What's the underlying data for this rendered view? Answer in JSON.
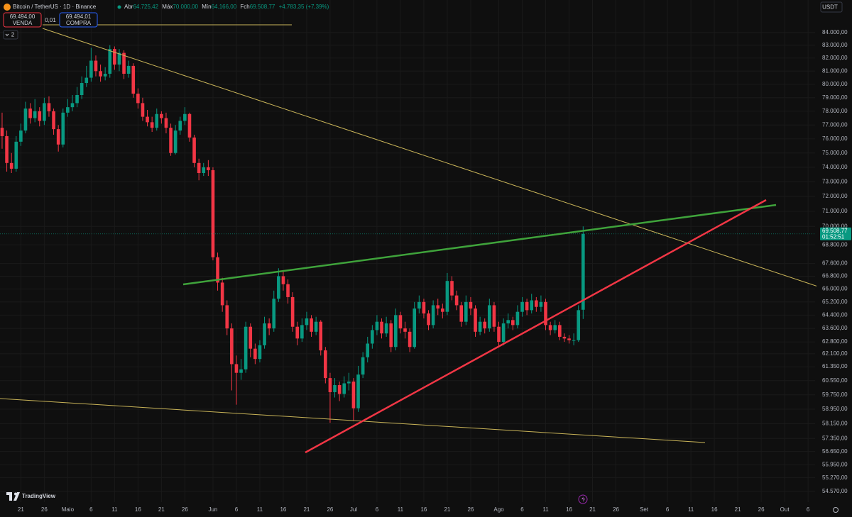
{
  "header": {
    "abr_label": "Abr",
    "abr": "64.725,42",
    "max_label": "Máx",
    "max": "70.000,00",
    "min_label": "Mín",
    "min": "64.166,00",
    "close_label": "Fch",
    "close": "69.508,77",
    "change": "+4.783,35 (+7,39%)",
    "sell": "69.494,00",
    "sell_label": "VENDA",
    "qty": "0,01",
    "buy": "69.494,01",
    "buy_label": "COMPRA",
    "indicators": "2",
    "currency": "USDT"
  },
  "branding": "TradingView",
  "chart_data": {
    "type": "candlestick",
    "title": "Bitcoin / TetherUS · 1D · Binance",
    "up_color": "#089981",
    "down_color": "#f23645",
    "log_scale": true,
    "grid": true,
    "last_price_label": "69.508,77",
    "countdown": "01:52:51",
    "xlim": [
      -0.45,
      173.5
    ],
    "xticks": [
      {
        "value": 4,
        "label": "21"
      },
      {
        "value": 9,
        "label": "26"
      },
      {
        "value": 14,
        "label": "Maio"
      },
      {
        "value": 19,
        "label": "6"
      },
      {
        "value": 24,
        "label": "11"
      },
      {
        "value": 29,
        "label": "16"
      },
      {
        "value": 34,
        "label": "21"
      },
      {
        "value": 39,
        "label": "26"
      },
      {
        "value": 45,
        "label": "Jun"
      },
      {
        "value": 50,
        "label": "6"
      },
      {
        "value": 55,
        "label": "11"
      },
      {
        "value": 60,
        "label": "16"
      },
      {
        "value": 65,
        "label": "21"
      },
      {
        "value": 70,
        "label": "26"
      },
      {
        "value": 75,
        "label": "Jul"
      },
      {
        "value": 80,
        "label": "6"
      },
      {
        "value": 85,
        "label": "11"
      },
      {
        "value": 90,
        "label": "16"
      },
      {
        "value": 95,
        "label": "21"
      },
      {
        "value": 100,
        "label": "26"
      },
      {
        "value": 106,
        "label": "Ago"
      },
      {
        "value": 111,
        "label": "6"
      },
      {
        "value": 116,
        "label": "11"
      },
      {
        "value": 121,
        "label": "16"
      },
      {
        "value": 126,
        "label": "21"
      },
      {
        "value": 131,
        "label": "26"
      },
      {
        "value": 137,
        "label": "Set"
      },
      {
        "value": 142,
        "label": "6"
      },
      {
        "value": 147,
        "label": "11"
      },
      {
        "value": 152,
        "label": "16"
      },
      {
        "value": 157,
        "label": "21"
      },
      {
        "value": 162,
        "label": "26"
      },
      {
        "value": 167,
        "label": "Out"
      },
      {
        "value": 172,
        "label": "6"
      }
    ],
    "ylim": [
      54020,
      86600
    ],
    "yticks": [
      {
        "value": 84000,
        "label": "84.000,00"
      },
      {
        "value": 83000,
        "label": "83.000,00"
      },
      {
        "value": 82000,
        "label": "82.000,00"
      },
      {
        "value": 81000,
        "label": "81.000,00"
      },
      {
        "value": 80000,
        "label": "80.000,00"
      },
      {
        "value": 79000,
        "label": "79.000,00"
      },
      {
        "value": 78000,
        "label": "78.000,00"
      },
      {
        "value": 77000,
        "label": "77.000,00"
      },
      {
        "value": 76000,
        "label": "76.000,00"
      },
      {
        "value": 75000,
        "label": "75.000,00"
      },
      {
        "value": 74000,
        "label": "74.000,00"
      },
      {
        "value": 73000,
        "label": "73.000,00"
      },
      {
        "value": 72000,
        "label": "72.000,00"
      },
      {
        "value": 71000,
        "label": "71.000,00"
      },
      {
        "value": 70000,
        "label": "70.000,00"
      },
      {
        "value": 68800,
        "label": "68.800,00"
      },
      {
        "value": 67600,
        "label": "67.600,00"
      },
      {
        "value": 66800,
        "label": "66.800,00"
      },
      {
        "value": 66000,
        "label": "66.000,00"
      },
      {
        "value": 65200,
        "label": "65.200,00"
      },
      {
        "value": 64400,
        "label": "64.400,00"
      },
      {
        "value": 63600,
        "label": "63.600,00"
      },
      {
        "value": 62800,
        "label": "62.800,00"
      },
      {
        "value": 62100,
        "label": "62.100,00"
      },
      {
        "value": 61350,
        "label": "61.350,00"
      },
      {
        "value": 60550,
        "label": "60.550,00"
      },
      {
        "value": 59750,
        "label": "59.750,00"
      },
      {
        "value": 58950,
        "label": "58.950,00"
      },
      {
        "value": 58150,
        "label": "58.150,00"
      },
      {
        "value": 57350,
        "label": "57.350,00"
      },
      {
        "value": 56650,
        "label": "56.650,00"
      },
      {
        "value": 55950,
        "label": "55.950,00"
      },
      {
        "value": 55270,
        "label": "55.270,00"
      },
      {
        "value": 54570,
        "label": "54.570,00"
      }
    ],
    "open": [
      76800,
      76200,
      74300,
      73900,
      75800,
      76600,
      78200,
      77500,
      78000,
      77300,
      78600,
      78000,
      76700,
      75600,
      77900,
      78300,
      78600,
      79200,
      80100,
      80500,
      81800,
      81000,
      80600,
      80800,
      82700,
      81500,
      82400,
      80800,
      81400,
      79300,
      78600,
      77600,
      77200,
      76800,
      77800,
      77500,
      76800,
      75000,
      76600,
      77300,
      77800,
      76100,
      74300,
      73600,
      74000,
      73800,
      68000,
      66400,
      65000,
      63600,
      61500,
      61000,
      61200,
      63700,
      62400,
      61800,
      62600,
      63900,
      63600,
      65400,
      66800,
      66300,
      65500,
      63700,
      63000,
      63800,
      64200,
      63400,
      64000,
      62300,
      60700,
      59900,
      60300,
      59800,
      60400,
      60500,
      59000,
      60900,
      61900,
      62700,
      63500,
      64000,
      63300,
      63900,
      62500,
      64400,
      63600,
      63400,
      62500,
      64800,
      65200,
      64500,
      63800,
      65000,
      64800,
      64600,
      66500,
      65600,
      65000,
      64000,
      65200,
      64800,
      63400,
      64000,
      63600,
      65000,
      63700,
      62800,
      63900,
      64100,
      63800,
      64600,
      65200,
      64700,
      65300,
      64900,
      65200,
      63800,
      63500,
      63800,
      63100,
      63000,
      62900,
      62900,
      64725.42
    ],
    "high": [
      77900,
      76600,
      75000,
      76200,
      77100,
      78700,
      78600,
      78900,
      78300,
      79000,
      79100,
      78200,
      77000,
      78200,
      78900,
      79200,
      79800,
      80600,
      81400,
      82800,
      82200,
      81500,
      81300,
      83000,
      82900,
      82700,
      82600,
      81800,
      81600,
      79700,
      79000,
      78100,
      77600,
      78200,
      78000,
      77900,
      77100,
      77000,
      77600,
      78300,
      77900,
      76300,
      74600,
      74300,
      74500,
      74000,
      68300,
      66700,
      65300,
      63900,
      62000,
      61800,
      64000,
      63900,
      62700,
      62900,
      64300,
      64200,
      65900,
      67300,
      67100,
      66600,
      65800,
      64000,
      64200,
      64600,
      64400,
      64300,
      64100,
      62500,
      61000,
      60700,
      60500,
      60800,
      61000,
      60700,
      61400,
      62200,
      63100,
      63800,
      64400,
      64200,
      64300,
      64100,
      64800,
      64600,
      64000,
      63600,
      65200,
      65600,
      65400,
      64700,
      65300,
      65400,
      65100,
      67000,
      66800,
      65900,
      65200,
      65600,
      65500,
      65000,
      64300,
      64200,
      65400,
      65200,
      64000,
      64200,
      64500,
      64300,
      65000,
      65500,
      65400,
      65700,
      65500,
      65600,
      65400,
      64000,
      64100,
      64000,
      63300,
      63200,
      63300,
      65000,
      70000
    ],
    "low": [
      75300,
      73700,
      73600,
      73700,
      75500,
      76400,
      77100,
      77200,
      76900,
      77000,
      77600,
      76300,
      75100,
      75400,
      77600,
      78000,
      78300,
      78900,
      79800,
      80200,
      80600,
      80200,
      80300,
      80500,
      81100,
      81000,
      80400,
      80500,
      79000,
      78200,
      77300,
      76900,
      76500,
      76600,
      77100,
      76400,
      74800,
      74900,
      76300,
      77000,
      75800,
      74000,
      73100,
      73400,
      73400,
      67800,
      65900,
      64600,
      63200,
      60000,
      59200,
      60600,
      61000,
      61900,
      61500,
      61600,
      62400,
      63200,
      63400,
      65200,
      65900,
      65100,
      63400,
      62600,
      62800,
      63500,
      63100,
      63200,
      62000,
      60400,
      58200,
      59600,
      59400,
      59600,
      60000,
      58300,
      58800,
      60700,
      61600,
      62400,
      63200,
      63000,
      63100,
      62200,
      62300,
      63300,
      63000,
      62200,
      62400,
      64500,
      64200,
      63500,
      63600,
      64400,
      64200,
      64400,
      65300,
      64700,
      63700,
      63800,
      64400,
      63100,
      63200,
      63300,
      63400,
      63400,
      62500,
      62600,
      63600,
      63500,
      63600,
      64300,
      64400,
      64500,
      64600,
      64600,
      63500,
      63200,
      63300,
      62900,
      62800,
      62700,
      62600,
      62800,
      64166
    ],
    "close": [
      76200,
      74300,
      73900,
      75800,
      76600,
      78200,
      77500,
      78000,
      77300,
      78600,
      78000,
      76700,
      75600,
      77900,
      78300,
      78600,
      79200,
      80100,
      80500,
      81800,
      81000,
      80600,
      80800,
      82700,
      81500,
      82400,
      80800,
      81400,
      79300,
      78600,
      77600,
      77200,
      76800,
      77800,
      77500,
      76800,
      75000,
      76600,
      77300,
      77800,
      76100,
      74300,
      73600,
      74000,
      73800,
      68000,
      66400,
      65000,
      63600,
      61500,
      61000,
      61200,
      63700,
      62400,
      61800,
      62600,
      63900,
      63600,
      65400,
      66800,
      66300,
      65500,
      63700,
      63000,
      63800,
      64200,
      63400,
      64000,
      62300,
      60700,
      59900,
      60300,
      59800,
      60400,
      60500,
      59000,
      60900,
      61900,
      62700,
      63500,
      64000,
      63300,
      63900,
      62500,
      64400,
      63600,
      63400,
      62500,
      64800,
      65200,
      64500,
      63800,
      65000,
      64800,
      64600,
      66500,
      65600,
      65000,
      64000,
      65200,
      64800,
      63400,
      64000,
      63600,
      65000,
      63700,
      62800,
      63900,
      64100,
      63800,
      64600,
      65200,
      64700,
      65300,
      64900,
      65200,
      63800,
      63500,
      63800,
      63100,
      63000,
      62900,
      62900,
      64700,
      69508.77
    ]
  }
}
